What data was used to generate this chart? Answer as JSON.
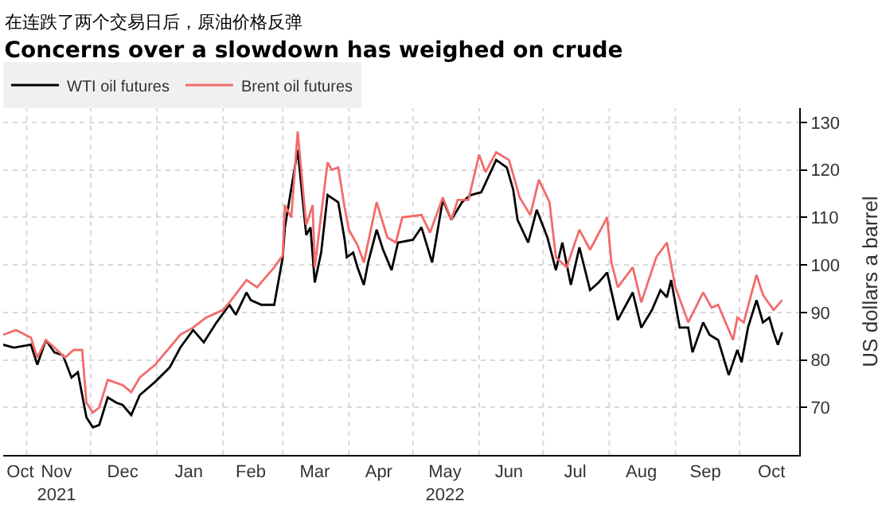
{
  "chart_data": {
    "type": "line",
    "title": "Concerns over a slowdown has weighed on crude",
    "subtitle": "在连跌了两个交易日后，原油价格反弹",
    "ylabel": "US dollars a barrel",
    "series": [
      {
        "name": "WTI oil futures",
        "color": "#000000",
        "x": [
          "2021-10-21",
          "2021-10-26",
          "2021-11-03",
          "2021-11-06",
          "2021-11-10",
          "2021-11-14",
          "2021-11-18",
          "2021-11-22",
          "2021-11-25",
          "2021-11-29",
          "2021-12-02",
          "2021-12-05",
          "2021-12-09",
          "2021-12-13",
          "2021-12-16",
          "2021-12-20",
          "2021-12-24",
          "2021-12-31",
          "2022-01-07",
          "2022-01-12",
          "2022-01-18",
          "2022-01-23",
          "2022-01-29",
          "2022-02-04",
          "2022-02-07",
          "2022-02-12",
          "2022-02-14",
          "2022-02-19",
          "2022-02-25",
          "2022-03-01",
          "2022-03-02",
          "2022-03-08",
          "2022-03-12",
          "2022-03-14",
          "2022-03-16",
          "2022-03-19",
          "2022-03-22",
          "2022-03-27",
          "2022-03-30",
          "2022-03-31",
          "2022-04-03",
          "2022-04-05",
          "2022-04-08",
          "2022-04-10",
          "2022-04-14",
          "2022-04-17",
          "2022-04-21",
          "2022-04-24",
          "2022-05-01",
          "2022-05-05",
          "2022-05-10",
          "2022-05-15",
          "2022-05-19",
          "2022-05-24",
          "2022-05-28",
          "2022-06-02",
          "2022-06-09",
          "2022-06-14",
          "2022-06-17",
          "2022-06-19",
          "2022-06-24",
          "2022-06-28",
          "2022-07-03",
          "2022-07-07",
          "2022-07-10",
          "2022-07-14",
          "2022-07-18",
          "2022-07-23",
          "2022-07-27",
          "2022-07-31",
          "2022-08-05",
          "2022-08-12",
          "2022-08-16",
          "2022-08-21",
          "2022-08-25",
          "2022-08-28",
          "2022-08-30",
          "2022-09-03",
          "2022-09-07",
          "2022-09-09",
          "2022-09-14",
          "2022-09-17",
          "2022-09-21",
          "2022-09-26",
          "2022-09-30",
          "2022-10-02",
          "2022-10-05",
          "2022-10-09",
          "2022-10-12",
          "2022-10-15",
          "2022-10-17",
          "2022-10-19",
          "2022-10-21"
        ],
        "values": [
          83.2,
          82.6,
          83.2,
          79,
          84.2,
          81.6,
          81,
          76.3,
          77.4,
          67.9,
          65.8,
          66.3,
          72.1,
          71,
          70.5,
          68.4,
          72.6,
          75.3,
          78.4,
          82.6,
          86.3,
          83.7,
          87.9,
          91.6,
          89.5,
          94.2,
          92.6,
          91.6,
          91.6,
          101.6,
          107.9,
          124.2,
          106.3,
          107.9,
          96.3,
          102.6,
          114.7,
          113.2,
          105.3,
          101.6,
          102.6,
          99.5,
          95.8,
          100.5,
          107.4,
          103.2,
          98.9,
          104.7,
          105.3,
          107.9,
          100.5,
          113.7,
          109.5,
          113.2,
          114.7,
          115.3,
          122.1,
          120.5,
          115.8,
          109.5,
          104.7,
          111.6,
          105.8,
          98.9,
          104.7,
          95.8,
          103.7,
          94.7,
          96.3,
          98.4,
          88.4,
          94.2,
          86.8,
          90.5,
          94.7,
          93.2,
          96.8,
          86.8,
          86.8,
          81.6,
          87.9,
          85.3,
          84.2,
          76.8,
          82.1,
          79.5,
          86.8,
          92.6,
          87.9,
          88.9,
          85.8,
          83.2,
          85.8
        ]
      },
      {
        "name": "Brent oil futures",
        "color": "#f26b6b",
        "x": [
          "2021-10-21",
          "2021-10-27",
          "2021-11-03",
          "2021-11-06",
          "2021-11-10",
          "2021-11-14",
          "2021-11-19",
          "2021-11-23",
          "2021-11-27",
          "2021-11-29",
          "2021-12-02",
          "2021-12-05",
          "2021-12-09",
          "2021-12-16",
          "2021-12-20",
          "2021-12-24",
          "2021-12-31",
          "2022-01-07",
          "2022-01-12",
          "2022-01-18",
          "2022-01-24",
          "2022-02-01",
          "2022-02-04",
          "2022-02-12",
          "2022-02-17",
          "2022-02-21",
          "2022-02-25",
          "2022-03-01",
          "2022-03-02",
          "2022-03-05",
          "2022-03-08",
          "2022-03-12",
          "2022-03-15",
          "2022-03-16",
          "2022-03-22",
          "2022-03-24",
          "2022-03-27",
          "2022-03-30",
          "2022-04-01",
          "2022-04-05",
          "2022-04-08",
          "2022-04-14",
          "2022-04-19",
          "2022-04-23",
          "2022-04-26",
          "2022-05-05",
          "2022-05-09",
          "2022-05-15",
          "2022-05-19",
          "2022-05-22",
          "2022-05-27",
          "2022-06-01",
          "2022-06-04",
          "2022-06-09",
          "2022-06-15",
          "2022-06-18",
          "2022-06-20",
          "2022-06-25",
          "2022-06-29",
          "2022-07-04",
          "2022-07-07",
          "2022-07-12",
          "2022-07-18",
          "2022-07-23",
          "2022-07-31",
          "2022-08-02",
          "2022-08-05",
          "2022-08-12",
          "2022-08-16",
          "2022-08-23",
          "2022-08-28",
          "2022-09-01",
          "2022-09-07",
          "2022-09-14",
          "2022-09-18",
          "2022-09-21",
          "2022-09-28",
          "2022-09-30",
          "2022-10-03",
          "2022-10-09",
          "2022-10-12",
          "2022-10-17",
          "2022-10-21"
        ],
        "values": [
          85.3,
          86.3,
          84.7,
          80.5,
          84.2,
          82.6,
          80.5,
          82.1,
          82.1,
          71,
          68.9,
          70,
          75.8,
          74.7,
          73.2,
          76.3,
          78.9,
          82.6,
          85.3,
          86.8,
          88.9,
          90.5,
          92.1,
          96.8,
          95.3,
          97.4,
          99.5,
          102,
          112.6,
          110,
          128.1,
          108.4,
          112.6,
          99.5,
          121.6,
          120,
          120.5,
          112.1,
          107.4,
          104.2,
          100.5,
          113.2,
          105.8,
          104.7,
          110,
          110.5,
          106.8,
          114.2,
          109.5,
          113.7,
          113.7,
          123.2,
          119.5,
          123.7,
          122.1,
          117.4,
          114.2,
          110.5,
          117.9,
          113.2,
          101.6,
          99.5,
          107.4,
          103.2,
          110,
          100.5,
          95.3,
          99.5,
          92.1,
          101.6,
          104.7,
          95.3,
          87.9,
          94.2,
          91,
          91.6,
          84.2,
          88.9,
          87.9,
          97.9,
          93.7,
          90.5,
          92.6
        ]
      }
    ],
    "xlim": [
      "2021-10-21",
      "2022-10-29"
    ],
    "xticks": [
      {
        "value": "2021-10-29",
        "label": "Oct"
      },
      {
        "value": "2021-11-15",
        "label": "Nov\n2021"
      },
      {
        "value": "2021-12-16",
        "label": "Dec"
      },
      {
        "value": "2022-01-16",
        "label": "Jan"
      },
      {
        "value": "2022-02-14",
        "label": "Feb"
      },
      {
        "value": "2022-03-16",
        "label": "Mar"
      },
      {
        "value": "2022-04-15",
        "label": "Apr"
      },
      {
        "value": "2022-05-16",
        "label": "May\n2022"
      },
      {
        "value": "2022-06-15",
        "label": "Jun"
      },
      {
        "value": "2022-07-16",
        "label": "Jul"
      },
      {
        "value": "2022-08-16",
        "label": "Aug"
      },
      {
        "value": "2022-09-15",
        "label": "Sep"
      },
      {
        "value": "2022-10-16",
        "label": "Oct"
      },
      {
        "value": "2021-11-01",
        "label": null
      },
      {
        "value": "2021-12-01",
        "label": null
      },
      {
        "value": "2022-01-01",
        "label": null
      },
      {
        "value": "2022-02-01",
        "label": null
      },
      {
        "value": "2022-03-01",
        "label": null
      },
      {
        "value": "2022-04-01",
        "label": null
      },
      {
        "value": "2022-05-01",
        "label": null
      },
      {
        "value": "2022-06-01",
        "label": null
      },
      {
        "value": "2022-07-01",
        "label": null
      },
      {
        "value": "2022-08-01",
        "label": null
      },
      {
        "value": "2022-09-01",
        "label": null
      },
      {
        "value": "2022-10-01",
        "label": null
      }
    ],
    "ylim": [
      60,
      133
    ],
    "yticks": [
      70,
      80,
      90,
      100,
      110,
      120,
      130
    ],
    "grid": true,
    "legend": "top left",
    "marker": "none",
    "line_style": "solid"
  }
}
